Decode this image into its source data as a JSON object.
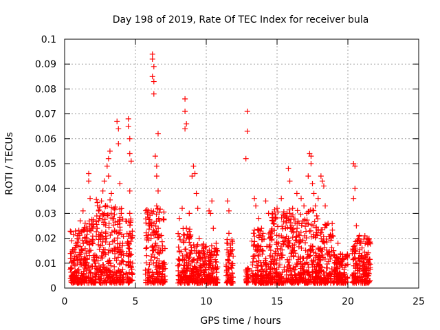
{
  "chart_data": {
    "type": "scatter",
    "title": "Day 198 of 2019, Rate Of TEC Index for receiver bula",
    "xlabel": "GPS time / hours",
    "ylabel": "ROTI / TECUs",
    "xlim": [
      0,
      25
    ],
    "ylim": [
      0,
      0.1
    ],
    "xticks": [
      "0",
      "5",
      "10",
      "15",
      "20",
      "25"
    ],
    "yticks": [
      "0",
      "0.01",
      "0.02",
      "0.03",
      "0.04",
      "0.05",
      "0.06",
      "0.07",
      "0.08",
      "0.09",
      "0.1"
    ],
    "grid": true,
    "marker": "+",
    "color": "#ff0000",
    "series": [
      {
        "points": [
          [
            0.5,
            0.019
          ],
          [
            0.5,
            0.008
          ],
          [
            0.6,
            0.005
          ],
          [
            0.7,
            0.012
          ],
          [
            0.8,
            0.018
          ],
          [
            0.9,
            0.01
          ],
          [
            1.0,
            0.006
          ],
          [
            1.0,
            0.022
          ],
          [
            1.1,
            0.027
          ],
          [
            1.2,
            0.015
          ],
          [
            1.3,
            0.031
          ],
          [
            1.4,
            0.009
          ],
          [
            1.5,
            0.02
          ],
          [
            1.6,
            0.012
          ],
          [
            1.7,
            0.046
          ],
          [
            1.7,
            0.043
          ],
          [
            1.8,
            0.036
          ],
          [
            1.9,
            0.025
          ],
          [
            2.0,
            0.018
          ],
          [
            2.2,
            0.01
          ],
          [
            2.3,
            0.024
          ],
          [
            2.4,
            0.031
          ],
          [
            2.5,
            0.029
          ],
          [
            2.6,
            0.035
          ],
          [
            2.7,
            0.039
          ],
          [
            2.8,
            0.043
          ],
          [
            2.9,
            0.022
          ],
          [
            3.0,
            0.049
          ],
          [
            3.1,
            0.052
          ],
          [
            3.1,
            0.045
          ],
          [
            3.2,
            0.055
          ],
          [
            3.3,
            0.038
          ],
          [
            3.4,
            0.028
          ],
          [
            3.5,
            0.016
          ],
          [
            3.7,
            0.067
          ],
          [
            3.8,
            0.064
          ],
          [
            3.8,
            0.058
          ],
          [
            3.9,
            0.042
          ],
          [
            4.0,
            0.03
          ],
          [
            4.1,
            0.018
          ],
          [
            4.5,
            0.068
          ],
          [
            4.5,
            0.065
          ],
          [
            4.6,
            0.06
          ],
          [
            4.6,
            0.054
          ],
          [
            4.7,
            0.051
          ],
          [
            4.6,
            0.039
          ],
          [
            4.6,
            0.03
          ],
          [
            4.7,
            0.02
          ],
          [
            4.8,
            0.01
          ],
          [
            5.9,
            0.031
          ],
          [
            6.0,
            0.025
          ],
          [
            6.1,
            0.02
          ],
          [
            6.2,
            0.094
          ],
          [
            6.2,
            0.092
          ],
          [
            6.3,
            0.089
          ],
          [
            6.2,
            0.085
          ],
          [
            6.3,
            0.083
          ],
          [
            6.3,
            0.078
          ],
          [
            6.4,
            0.053
          ],
          [
            6.5,
            0.049
          ],
          [
            6.6,
            0.062
          ],
          [
            6.5,
            0.045
          ],
          [
            6.6,
            0.039
          ],
          [
            6.5,
            0.033
          ],
          [
            6.7,
            0.027
          ],
          [
            6.9,
            0.015
          ],
          [
            7.0,
            0.008
          ],
          [
            8.1,
            0.028
          ],
          [
            8.3,
            0.032
          ],
          [
            8.5,
            0.076
          ],
          [
            8.5,
            0.071
          ],
          [
            8.6,
            0.066
          ],
          [
            8.5,
            0.064
          ],
          [
            8.6,
            0.024
          ],
          [
            8.8,
            0.03
          ],
          [
            9.0,
            0.045
          ],
          [
            9.1,
            0.049
          ],
          [
            9.2,
            0.046
          ],
          [
            9.3,
            0.038
          ],
          [
            9.4,
            0.032
          ],
          [
            9.5,
            0.02
          ],
          [
            9.7,
            0.015
          ],
          [
            9.9,
            0.012
          ],
          [
            10.2,
            0.031
          ],
          [
            10.3,
            0.03
          ],
          [
            10.4,
            0.035
          ],
          [
            10.5,
            0.024
          ],
          [
            10.7,
            0.018
          ],
          [
            11.5,
            0.035
          ],
          [
            11.6,
            0.031
          ],
          [
            11.6,
            0.022
          ],
          [
            11.7,
            0.014
          ],
          [
            11.8,
            0.008
          ],
          [
            12.9,
            0.071
          ],
          [
            12.9,
            0.063
          ],
          [
            12.8,
            0.052
          ],
          [
            12.9,
            0.004
          ],
          [
            13.4,
            0.036
          ],
          [
            13.5,
            0.033
          ],
          [
            13.7,
            0.028
          ],
          [
            13.9,
            0.024
          ],
          [
            14.2,
            0.035
          ],
          [
            14.4,
            0.03
          ],
          [
            14.7,
            0.027
          ],
          [
            15.0,
            0.032
          ],
          [
            15.3,
            0.036
          ],
          [
            15.5,
            0.029
          ],
          [
            15.6,
            0.024
          ],
          [
            15.8,
            0.048
          ],
          [
            15.9,
            0.043
          ],
          [
            16.1,
            0.032
          ],
          [
            16.4,
            0.038
          ],
          [
            16.7,
            0.036
          ],
          [
            16.9,
            0.033
          ],
          [
            17.1,
            0.03
          ],
          [
            17.2,
            0.045
          ],
          [
            17.3,
            0.054
          ],
          [
            17.4,
            0.053
          ],
          [
            17.4,
            0.05
          ],
          [
            17.5,
            0.042
          ],
          [
            17.6,
            0.038
          ],
          [
            17.7,
            0.033
          ],
          [
            17.8,
            0.029
          ],
          [
            17.9,
            0.036
          ],
          [
            18.1,
            0.045
          ],
          [
            18.2,
            0.043
          ],
          [
            18.3,
            0.041
          ],
          [
            18.4,
            0.033
          ],
          [
            18.6,
            0.026
          ],
          [
            18.8,
            0.021
          ],
          [
            19.0,
            0.015
          ],
          [
            19.3,
            0.018
          ],
          [
            19.6,
            0.012
          ],
          [
            19.8,
            0.009
          ],
          [
            20.4,
            0.05
          ],
          [
            20.5,
            0.049
          ],
          [
            20.5,
            0.04
          ],
          [
            20.4,
            0.036
          ],
          [
            20.6,
            0.025
          ],
          [
            20.8,
            0.018
          ],
          [
            21.0,
            0.012
          ],
          [
            21.2,
            0.021
          ],
          [
            21.4,
            0.018
          ],
          [
            21.5,
            0.01
          ]
        ]
      }
    ]
  }
}
